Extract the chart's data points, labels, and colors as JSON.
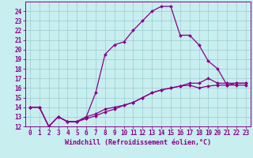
{
  "xlabel": "Windchill (Refroidissement éolien,°C)",
  "bg_color": "#c8eef0",
  "line_color": "#880088",
  "grid_color": "#99cccc",
  "xlim": [
    -0.5,
    23.5
  ],
  "ylim": [
    12,
    25
  ],
  "xticks": [
    0,
    1,
    2,
    3,
    4,
    5,
    6,
    7,
    8,
    9,
    10,
    11,
    12,
    13,
    14,
    15,
    16,
    17,
    18,
    19,
    20,
    21,
    22,
    23
  ],
  "yticks": [
    12,
    13,
    14,
    15,
    16,
    17,
    18,
    19,
    20,
    21,
    22,
    23,
    24
  ],
  "curve1_x": [
    0,
    1,
    2,
    3,
    4,
    5,
    6,
    7,
    8,
    9,
    10,
    11,
    12,
    13,
    14,
    15,
    16,
    17,
    18,
    19,
    20,
    21,
    22,
    23
  ],
  "curve1_y": [
    14,
    14,
    12,
    13,
    12.5,
    12.5,
    13,
    15.5,
    19.5,
    20.5,
    20.8,
    22,
    23,
    24,
    24.5,
    24.5,
    21.5,
    21.5,
    20.5,
    18.8,
    18,
    16.3,
    16.5,
    16.5
  ],
  "curve2_x": [
    0,
    1,
    2,
    3,
    4,
    5,
    6,
    7,
    8,
    9,
    10,
    11,
    12,
    13,
    14,
    15,
    16,
    17,
    18,
    19,
    20,
    21,
    22,
    23
  ],
  "curve2_y": [
    14,
    14,
    12,
    13,
    12.5,
    12.5,
    13,
    13.3,
    13.8,
    14,
    14.2,
    14.5,
    15,
    15.5,
    15.8,
    16,
    16.2,
    16.5,
    16.5,
    17,
    16.5,
    16.5,
    16.5,
    16.5
  ],
  "curve3_x": [
    0,
    1,
    2,
    3,
    4,
    5,
    6,
    7,
    8,
    9,
    10,
    11,
    12,
    13,
    14,
    15,
    16,
    17,
    18,
    19,
    20,
    21,
    22,
    23
  ],
  "curve3_y": [
    14,
    14,
    12,
    13,
    12.5,
    12.5,
    12.8,
    13.1,
    13.5,
    13.8,
    14.2,
    14.5,
    15,
    15.5,
    15.8,
    16,
    16.2,
    16.3,
    16.0,
    16.2,
    16.3,
    16.3,
    16.3,
    16.3
  ],
  "marker": "D",
  "markersize": 2.0,
  "linewidth": 0.9,
  "tick_fontsize": 5.5,
  "xlabel_fontsize": 6.0
}
